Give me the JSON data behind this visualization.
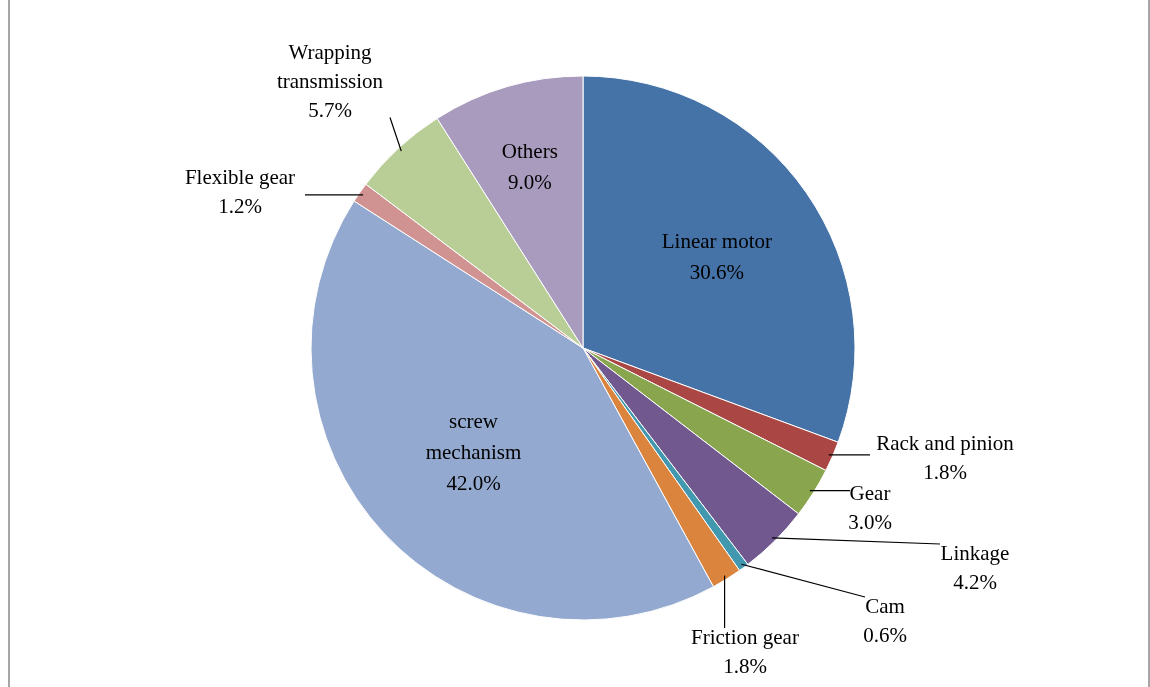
{
  "chart_data": {
    "type": "pie",
    "categories": [
      "Linear motor",
      "Rack and pinion",
      "Gear",
      "Linkage",
      "Cam",
      "Friction gear",
      "screw mechanism",
      "Flexible gear",
      "Wrapping transmission",
      "Others"
    ],
    "values": [
      30.6,
      1.8,
      3.0,
      4.2,
      0.6,
      1.8,
      42.0,
      1.2,
      5.7,
      9.0
    ],
    "colors": [
      "#4572a7",
      "#aa4643",
      "#89a54e",
      "#71588f",
      "#4198af",
      "#db843d",
      "#93a9cf",
      "#d19392",
      "#b9cd96",
      "#a99bbd"
    ],
    "value_labels": [
      "30.6%",
      "1.8%",
      "3.0%",
      "4.2%",
      "0.6%",
      "1.8%",
      "42.0%",
      "1.2%",
      "5.7%",
      "9.0%"
    ]
  }
}
